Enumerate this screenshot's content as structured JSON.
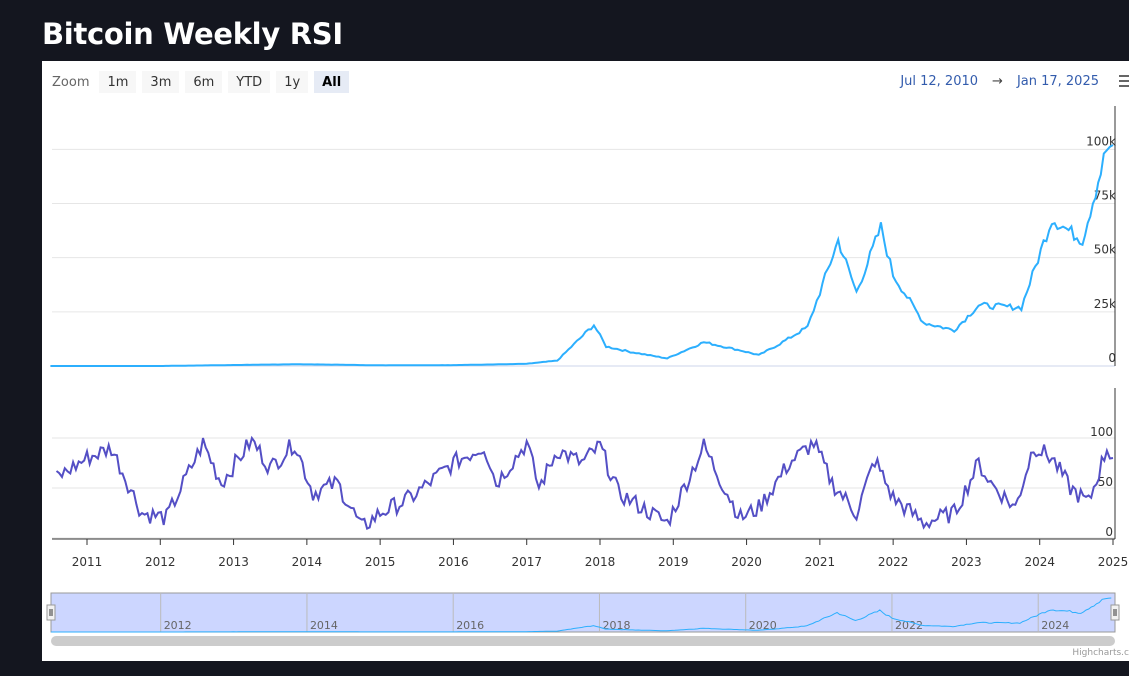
{
  "page": {
    "title": "Bitcoin Weekly RSI"
  },
  "toolbar": {
    "zoom_label": "Zoom",
    "zoom_buttons": [
      "1m",
      "3m",
      "6m",
      "YTD",
      "1y",
      "All"
    ],
    "active_zoom": "All",
    "range_from": "Jul 12, 2010",
    "range_arrow": "→",
    "range_to": "Jan 17, 2025"
  },
  "credits": "Highcharts.c",
  "colors": {
    "price": "#2caffe",
    "rsi": "#544fc5",
    "navigator_fill": "#ccd6ff",
    "background": "#14161f"
  },
  "chart_data": [
    {
      "type": "line",
      "name": "price",
      "y_ticks": [
        "0",
        "25k",
        "50k",
        "75k",
        "100k"
      ],
      "ylim": [
        0,
        120000
      ],
      "grid": true,
      "x": [
        "2010-07",
        "2012-01",
        "2013-11",
        "2014-06",
        "2015-01",
        "2016-01",
        "2017-01",
        "2017-06",
        "2017-12",
        "2018-02",
        "2018-06",
        "2018-12",
        "2019-06",
        "2019-12",
        "2020-03",
        "2020-06",
        "2020-11",
        "2021-01",
        "2021-04",
        "2021-07",
        "2021-11",
        "2022-01",
        "2022-06",
        "2022-11",
        "2023-03",
        "2023-10",
        "2024-03",
        "2024-08",
        "2024-11",
        "2024-12",
        "2025-01"
      ],
      "values": [
        0.07,
        5,
        800,
        600,
        300,
        400,
        1000,
        2500,
        19000,
        9000,
        6500,
        3500,
        11000,
        7200,
        5000,
        9500,
        18000,
        34000,
        58000,
        34000,
        64000,
        42000,
        20000,
        16500,
        28000,
        27000,
        68000,
        58000,
        90000,
        100000,
        102000
      ]
    },
    {
      "type": "line",
      "name": "rsi",
      "y_ticks": [
        "0",
        "50",
        "100"
      ],
      "ylim": [
        0,
        100
      ],
      "grid": true,
      "x": [
        "2010-08",
        "2011-01",
        "2011-05",
        "2011-10",
        "2012-02",
        "2012-08",
        "2012-11",
        "2013-04",
        "2013-07",
        "2013-11",
        "2014-02",
        "2014-06",
        "2014-10",
        "2015-01",
        "2015-06",
        "2016-01",
        "2016-06",
        "2016-08",
        "2017-01",
        "2017-03",
        "2017-06",
        "2017-10",
        "2018-01",
        "2018-04",
        "2018-12",
        "2019-06",
        "2019-09",
        "2019-12",
        "2020-03",
        "2020-08",
        "2020-12",
        "2021-03",
        "2021-07",
        "2021-10",
        "2022-01",
        "2022-06",
        "2022-11",
        "2023-03",
        "2023-05",
        "2023-09",
        "2023-12",
        "2024-03",
        "2024-06",
        "2024-09",
        "2024-12",
        "2025-01"
      ],
      "values": [
        60,
        80,
        90,
        25,
        20,
        95,
        55,
        98,
        70,
        95,
        45,
        55,
        10,
        25,
        40,
        75,
        92,
        55,
        95,
        50,
        88,
        75,
        92,
        45,
        15,
        92,
        55,
        20,
        30,
        75,
        95,
        55,
        25,
        78,
        40,
        15,
        25,
        75,
        55,
        30,
        92,
        80,
        50,
        35,
        90,
        80
      ]
    },
    {
      "type": "area",
      "name": "navigator",
      "tick_labels": [
        "2012",
        "2014",
        "2016",
        "2018",
        "2020",
        "2022",
        "2024"
      ]
    }
  ],
  "x_axis": {
    "ticks": [
      "2011",
      "2012",
      "2013",
      "2014",
      "2015",
      "2016",
      "2017",
      "2018",
      "2019",
      "2020",
      "2021",
      "2022",
      "2023",
      "2024",
      "2025"
    ]
  }
}
